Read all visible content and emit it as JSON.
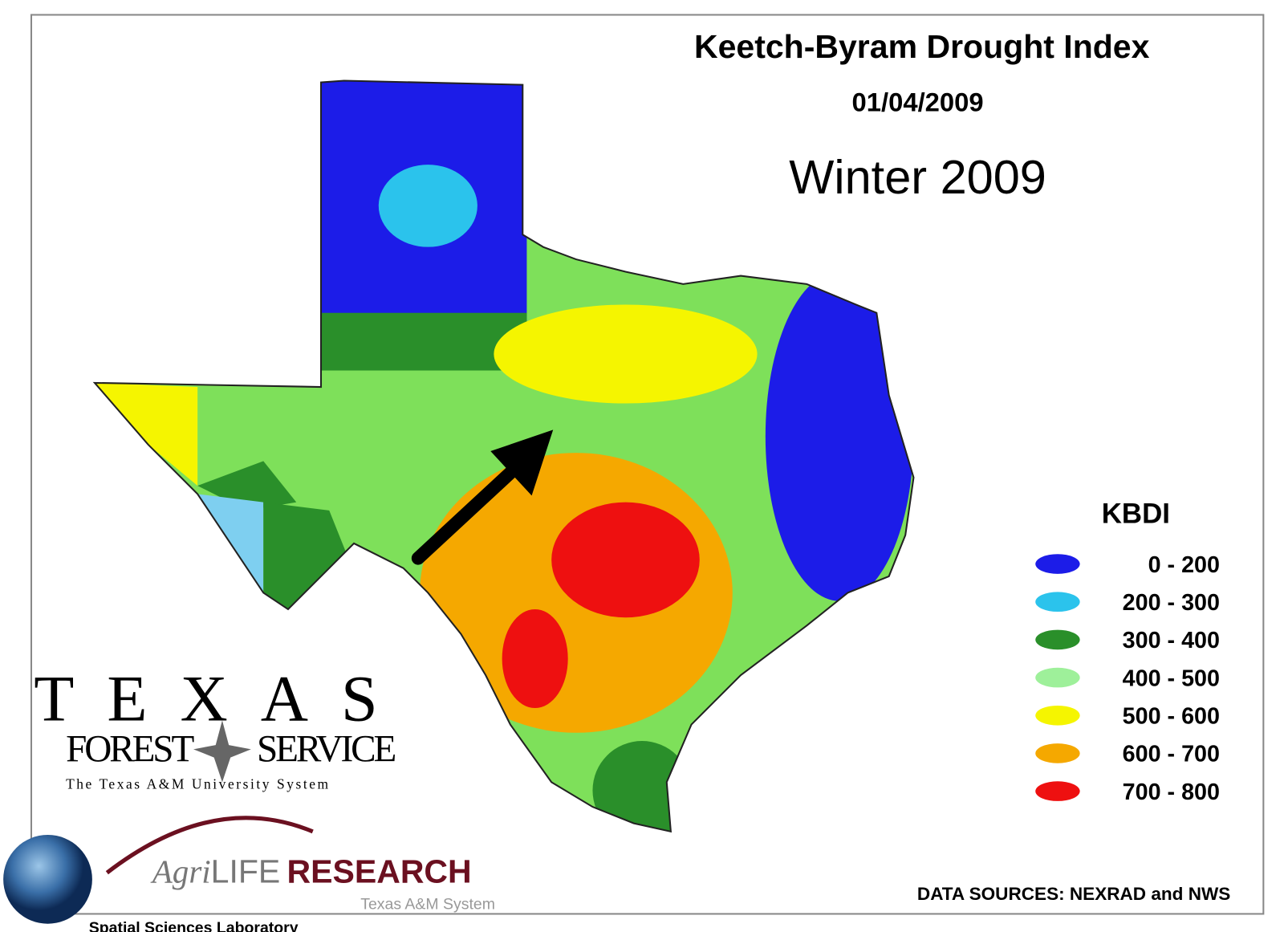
{
  "header": {
    "title": "Keetch-Byram Drought Index",
    "date": "01/04/2009",
    "season": "Winter 2009"
  },
  "legend": {
    "title": "KBDI",
    "items": [
      {
        "label": "0 - 200",
        "color": "#1c1ce8"
      },
      {
        "label": "200 - 300",
        "color": "#2bc3ec"
      },
      {
        "label": "300 - 400",
        "color": "#2a8f2a"
      },
      {
        "label": "400 - 500",
        "color": "#9ef09a"
      },
      {
        "label": "500 - 600",
        "color": "#f5f500"
      },
      {
        "label": "600 - 700",
        "color": "#f5a800"
      },
      {
        "label": "700 - 800",
        "color": "#ee1010"
      }
    ]
  },
  "logos": {
    "texas": "TEXAS",
    "forest": "FOREST",
    "service": "SERVICE",
    "system": "The Texas A&M University System",
    "agri": "Agri",
    "life": "LIFE",
    "research": "RESEARCH",
    "agri_system": "Texas A&M System",
    "lab": "Spatial Sciences Laboratory"
  },
  "footer": {
    "sources": "DATA SOURCES: NEXRAD and NWS"
  }
}
